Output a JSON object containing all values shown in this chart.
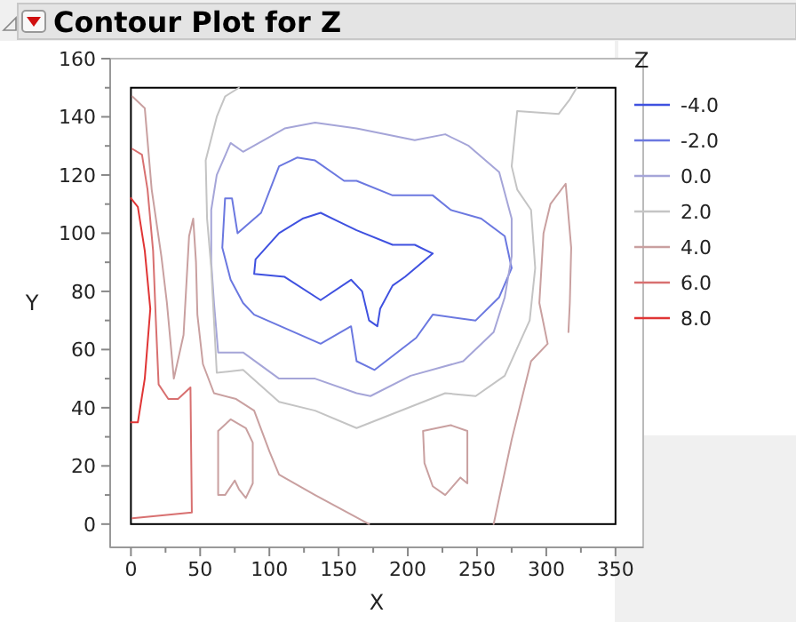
{
  "chart_data": {
    "type": "line",
    "title": "Contour Plot for Z",
    "xlabel": "X",
    "ylabel": "Y",
    "legend_title": "Z",
    "legend": "right",
    "grid": false,
    "marker": "none",
    "line_style": "solid",
    "xlim": [
      -15,
      370
    ],
    "ylim": [
      -8,
      160
    ],
    "xticks": [
      0,
      {
        "value": 25,
        "label": null
      },
      50,
      {
        "value": 75,
        "label": null
      },
      100,
      {
        "value": 125,
        "label": null
      },
      150,
      {
        "value": 175,
        "label": null
      },
      200,
      {
        "value": 225,
        "label": null
      },
      250,
      {
        "value": 275,
        "label": null
      },
      300,
      {
        "value": 325,
        "label": null
      },
      350
    ],
    "yticks": [
      0,
      {
        "value": 10,
        "label": null
      },
      20,
      {
        "value": 30,
        "label": null
      },
      40,
      {
        "value": 50,
        "label": null
      },
      60,
      {
        "value": 70,
        "label": null
      },
      80,
      {
        "value": 90,
        "label": null
      },
      100,
      {
        "value": 110,
        "label": null
      },
      120,
      {
        "value": 130,
        "label": null
      },
      140,
      {
        "value": 150,
        "label": null
      },
      160
    ],
    "series": [
      {
        "name": "-4.0",
        "color": "#3f51e0",
        "x": [
          89,
          90,
          107,
          124,
          137,
          150,
          163,
          189,
          205,
          218,
          null,
          89,
          111,
          137,
          159,
          167,
          172,
          178,
          180,
          189,
          198,
          218
        ],
        "values": [
          86,
          91,
          100,
          105,
          107,
          104,
          101,
          96,
          96,
          93,
          null,
          86,
          85,
          77,
          84,
          80,
          70,
          68,
          74,
          82,
          85,
          93
        ]
      },
      {
        "name": "-2.0",
        "color": "#6b78e0",
        "x": [
          66,
          68,
          73,
          77,
          94,
          107,
          120,
          133,
          154,
          163,
          189,
          218,
          231,
          253,
          270,
          275,
          null,
          66,
          72,
          81,
          89,
          137,
          159,
          163,
          176,
          206,
          218,
          249,
          266,
          275
        ],
        "values": [
          95,
          112,
          112,
          100,
          107,
          123,
          126,
          125,
          118,
          118,
          113,
          113,
          108,
          105,
          99,
          88,
          null,
          95,
          84,
          76,
          72,
          62,
          68,
          56,
          53,
          64,
          72,
          70,
          78,
          88
        ]
      },
      {
        "name": "0.0",
        "color": "#a5a5d8",
        "x": [
          58,
          58,
          62,
          72,
          81,
          111,
          133,
          163,
          205,
          227,
          244,
          266,
          275,
          275,
          null,
          58,
          60,
          63,
          81,
          107,
          133,
          163,
          173,
          202,
          240,
          262,
          270,
          275
        ],
        "values": [
          90,
          108,
          120,
          131,
          128,
          136,
          138,
          136,
          132,
          134,
          130,
          121,
          105,
          92,
          null,
          90,
          76,
          59,
          59,
          50,
          50,
          45,
          44,
          51,
          56,
          66,
          78,
          92
        ]
      },
      {
        "name": "2.0",
        "color": "#c4c4c4",
        "x": [
          54,
          62,
          68,
          78,
          null,
          54,
          55,
          58,
          60,
          62,
          81,
          107,
          133,
          163,
          227,
          249,
          270,
          288,
          292,
          null,
          275,
          279,
          289,
          292,
          null,
          275,
          279,
          309,
          317,
          322
        ],
        "values": [
          125,
          140,
          147,
          150,
          null,
          125,
          105,
          88,
          70,
          52,
          53,
          42,
          39,
          33,
          45,
          44,
          51,
          70,
          88,
          null,
          123,
          115,
          108,
          88,
          null,
          123,
          142,
          141,
          146,
          150
        ]
      },
      {
        "name": "4.0",
        "color": "#c9a0a0",
        "x": [
          1,
          10,
          15,
          22,
          26,
          31,
          38,
          42,
          45,
          47,
          48,
          52,
          60,
          76,
          89,
          100,
          107,
          133,
          172,
          null,
          63,
          72,
          83,
          88,
          88,
          null,
          63,
          63,
          68,
          75,
          78,
          83,
          88,
          null,
          211,
          231,
          243,
          243,
          null,
          211,
          212,
          218,
          227,
          238,
          243,
          null,
          262,
          266,
          275,
          289,
          301,
          null,
          295,
          301,
          null,
          295,
          298,
          303,
          314,
          318,
          null,
          316,
          317,
          318
        ],
        "values": [
          147,
          143,
          115,
          92,
          76,
          50,
          65,
          99,
          105,
          90,
          72,
          55,
          45,
          43,
          39,
          25,
          17,
          10,
          0,
          null,
          32,
          36,
          33,
          28,
          14,
          null,
          32,
          10,
          10,
          15,
          12,
          9,
          14,
          null,
          32,
          34,
          32,
          14,
          null,
          32,
          21,
          13,
          10,
          16,
          14,
          null,
          0,
          9,
          29,
          56,
          62,
          null,
          76,
          62,
          null,
          76,
          100,
          110,
          117,
          95,
          null,
          66,
          76,
          95
        ]
      },
      {
        "name": "6.0",
        "color": "#d87070",
        "x": [
          1,
          8,
          12,
          16,
          18,
          20,
          27,
          34,
          43,
          44,
          null,
          1,
          44
        ],
        "values": [
          129,
          127,
          115,
          94,
          70,
          48,
          43,
          43,
          47,
          4,
          null,
          2,
          4
        ]
      },
      {
        "name": "8.0",
        "color": "#e03535",
        "x": [
          0,
          5,
          10,
          14,
          null,
          0,
          5,
          10,
          14
        ],
        "values": [
          112,
          109,
          94,
          74,
          null,
          35,
          35,
          50,
          74
        ]
      }
    ]
  }
}
